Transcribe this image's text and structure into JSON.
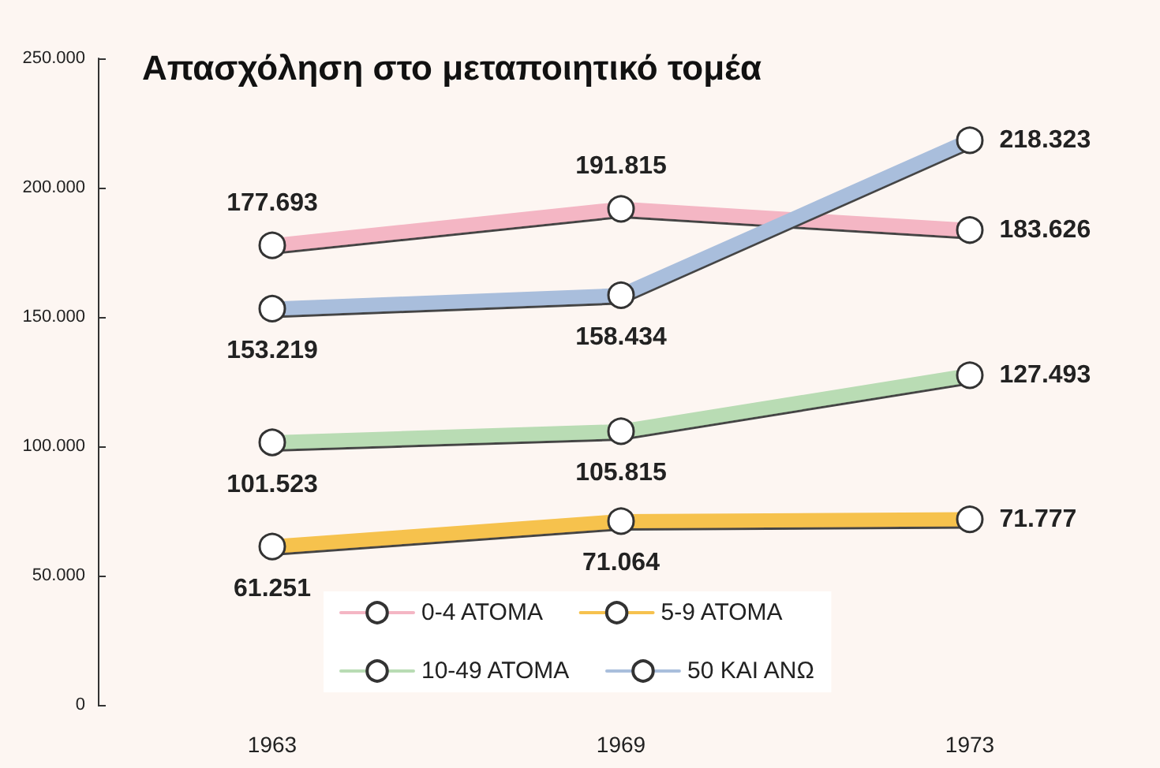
{
  "chart_data": {
    "type": "line",
    "title": "Απασχόληση στο μεταποιητικό τομέα",
    "categories": [
      "1963",
      "1969",
      "1973"
    ],
    "series": [
      {
        "name": "0-4 ΑΤΟΜΑ",
        "color": "#f4b6c4",
        "values": [
          177693,
          191815,
          183626
        ],
        "value_labels": [
          "177.693",
          "191.815",
          "183.626"
        ]
      },
      {
        "name": "5-9 ΑΤΟΜΑ",
        "color": "#f6c24e",
        "values": [
          61251,
          71064,
          71777
        ],
        "value_labels": [
          "61.251",
          "71.064",
          "71.777"
        ]
      },
      {
        "name": "10-49 ΑΤΟΜΑ",
        "color": "#b9dcb4",
        "values": [
          101523,
          105815,
          127493
        ],
        "value_labels": [
          "101.523",
          "105.815",
          "127.493"
        ]
      },
      {
        "name": "50 ΚΑΙ ΑΝΩ",
        "color": "#a9bedc",
        "values": [
          153219,
          158434,
          218323
        ],
        "value_labels": [
          "153.219",
          "158.434",
          "218.323"
        ]
      }
    ],
    "ylim": [
      0,
      250000
    ],
    "yticks": [
      0,
      {
        "value": 50000,
        "label": "50.000"
      },
      {
        "value": 100000,
        "label": "100.000"
      },
      {
        "value": 150000,
        "label": "150.000"
      },
      {
        "value": 200000,
        "label": "200.000"
      },
      {
        "value": 250000,
        "label": "250.000"
      }
    ],
    "marker": "circle",
    "line_style": "solid",
    "grid": false,
    "legend": "bottom"
  }
}
